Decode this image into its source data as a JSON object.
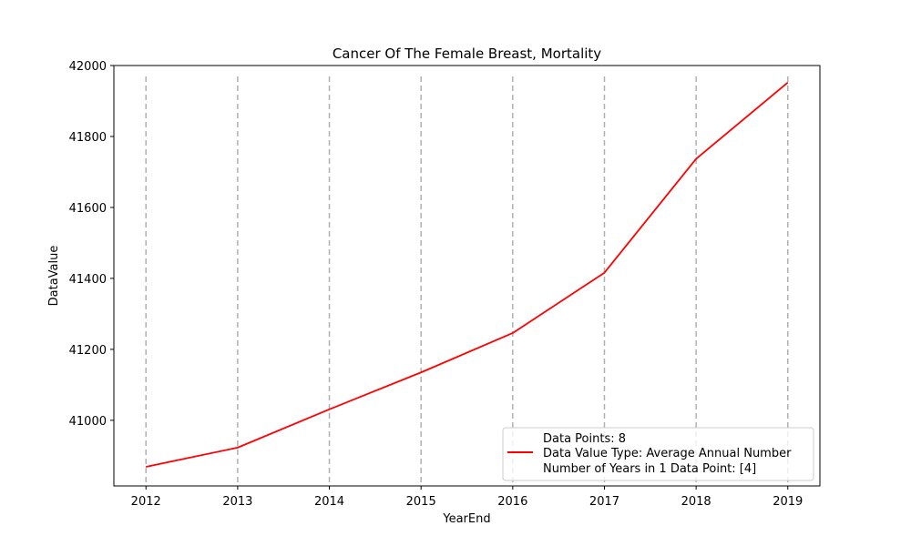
{
  "chart_data": {
    "type": "line",
    "title": "Cancer Of The Female Breast, Mortality",
    "xlabel": "YearEnd",
    "ylabel": "DataValue",
    "x": [
      2012,
      2013,
      2014,
      2015,
      2016,
      2017,
      2018,
      2019
    ],
    "series": [
      {
        "values": [
          40869,
          40923,
          41031,
          41135,
          41246,
          41416,
          41737,
          41952
        ],
        "color": "#ff0000"
      }
    ],
    "xlim": [
      2011.65,
      2019.35
    ],
    "ylim": [
      40815,
      42000
    ],
    "yticks": [
      41000,
      41200,
      41400,
      41600,
      41800,
      42000
    ],
    "xticks": [
      2012,
      2013,
      2014,
      2015,
      2016,
      2017,
      2018,
      2019
    ],
    "grid": "vertical dashed at each year",
    "grid_color": "#b0b0b0",
    "legend": {
      "position": "lower-right",
      "entries": [
        "Data Points: 8",
        "Data Value Type: Average Annual Number",
        "Number of Years in 1 Data Point: [4]"
      ]
    }
  }
}
